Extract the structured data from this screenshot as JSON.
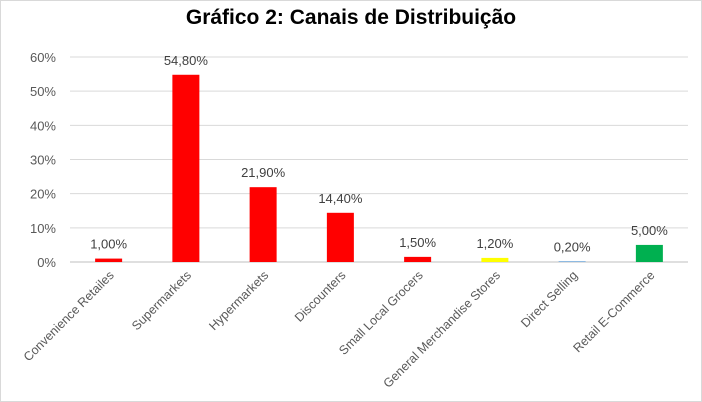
{
  "chart_data": {
    "type": "bar",
    "title": "Gráfico 2: Canais de Distribuição",
    "xlabel": "",
    "ylabel": "",
    "categories": [
      "Convenience Retailes",
      "Supermarkets",
      "Hypermarkets",
      "Discounters",
      "Small Local Grocers",
      "General Merchandise Stores",
      "Direct Selling",
      "Retail E-Commerce"
    ],
    "values": [
      1.0,
      54.8,
      21.9,
      14.4,
      1.5,
      1.2,
      0.2,
      5.0
    ],
    "data_labels": [
      "1,00%",
      "54,80%",
      "21,90%",
      "14,40%",
      "1,50%",
      "1,20%",
      "0,20%",
      "5,00%"
    ],
    "bar_colors": [
      "#ff0000",
      "#ff0000",
      "#ff0000",
      "#ff0000",
      "#ff0000",
      "#ffff00",
      "#5b9bd5",
      "#00b050"
    ],
    "ylim": [
      0,
      60
    ],
    "yticks": [
      0,
      10,
      20,
      30,
      40,
      50,
      60
    ],
    "ytick_labels": [
      "0%",
      "10%",
      "20%",
      "30%",
      "40%",
      "50%",
      "60%"
    ],
    "grid": true,
    "legend": "none"
  }
}
